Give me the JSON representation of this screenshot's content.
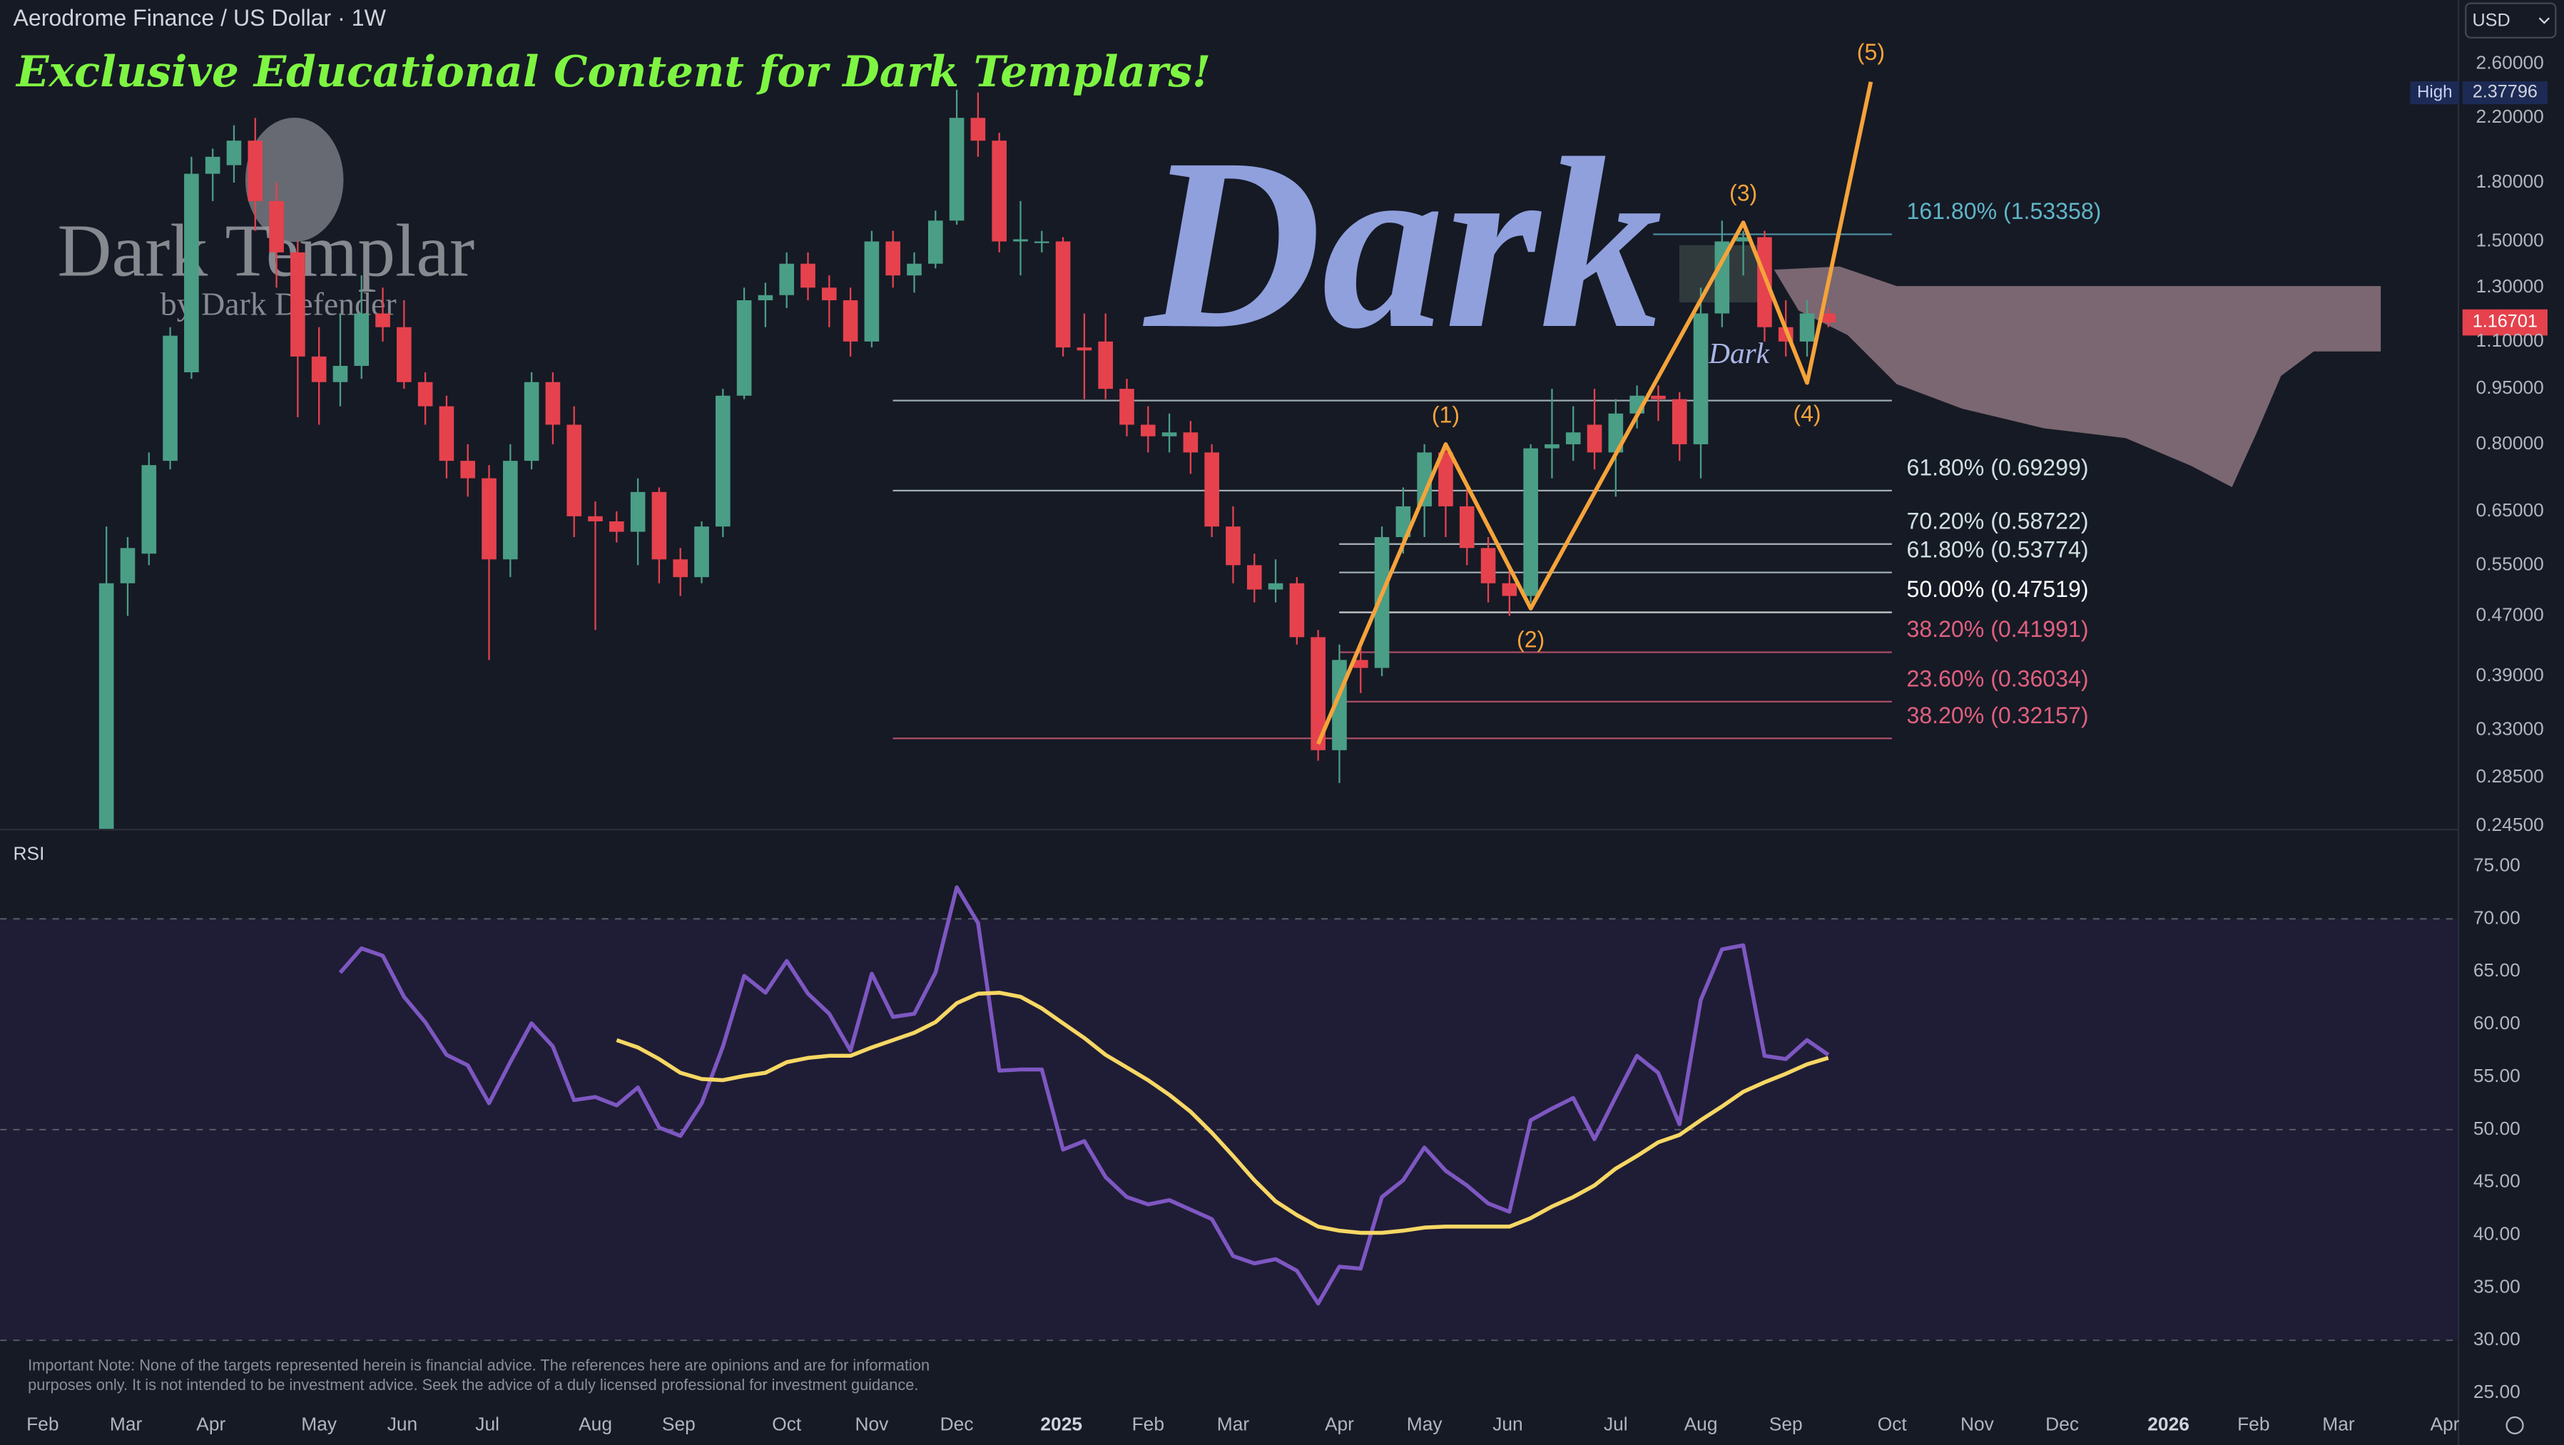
{
  "chart_data": [
    {
      "type": "candlestick",
      "title": "Aerodrome Finance / US Dollar · 1W",
      "log_scale": true,
      "up_color": "#4a9e86",
      "down_color": "#e5424d",
      "xlim": [
        -5,
        110.6
      ],
      "xticks": [
        {
          "value": -3,
          "label": "Feb"
        },
        {
          "value": 0.92,
          "label": "Mar"
        },
        {
          "value": 4.92,
          "label": "Apr"
        },
        {
          "value": 10,
          "label": "May"
        },
        {
          "value": 13.92,
          "label": "Jun"
        },
        {
          "value": 17.92,
          "label": "Jul"
        },
        {
          "value": 23,
          "label": "Aug"
        },
        {
          "value": 26.92,
          "label": "Sep"
        },
        {
          "value": 32,
          "label": "Oct"
        },
        {
          "value": 36,
          "label": "Nov"
        },
        {
          "value": 40,
          "label": "Dec"
        },
        {
          "value": 44.92,
          "label": "2025"
        },
        {
          "value": 49,
          "label": "Feb"
        },
        {
          "value": 53,
          "label": "Mar"
        },
        {
          "value": 58,
          "label": "Apr"
        },
        {
          "value": 62,
          "label": "May"
        },
        {
          "value": 65.92,
          "label": "Jun"
        },
        {
          "value": 71,
          "label": "Jul"
        },
        {
          "value": 75,
          "label": "Aug"
        },
        {
          "value": 79,
          "label": "Sep"
        },
        {
          "value": 84,
          "label": "Oct"
        },
        {
          "value": 88,
          "label": "Nov"
        },
        {
          "value": 92,
          "label": "Dec"
        },
        {
          "value": 97,
          "label": "2026"
        },
        {
          "value": 101,
          "label": "Feb"
        },
        {
          "value": 105,
          "label": "Mar"
        },
        {
          "value": 110,
          "label": "Apr"
        }
      ],
      "ylim": [
        0.243,
        3.17
      ],
      "yticks": [
        {
          "value": 2.6,
          "label": "2.60000"
        },
        {
          "value": 2.2,
          "label": "2.20000"
        },
        {
          "value": 1.8,
          "label": "1.80000"
        },
        {
          "value": 1.5,
          "label": "1.50000"
        },
        {
          "value": 1.3,
          "label": "1.30000"
        },
        {
          "value": 1.1,
          "label": "1.10000"
        },
        {
          "value": 0.95,
          "label": "0.95000"
        },
        {
          "value": 0.8,
          "label": "0.80000"
        },
        {
          "value": 0.65,
          "label": "0.65000"
        },
        {
          "value": 0.55,
          "label": "0.55000"
        },
        {
          "value": 0.47,
          "label": "0.47000"
        },
        {
          "value": 0.39,
          "label": "0.39000"
        },
        {
          "value": 0.33,
          "label": "0.33000"
        },
        {
          "value": 0.285,
          "label": "0.28500"
        },
        {
          "value": 0.245,
          "label": "0.24500"
        }
      ],
      "open": [
        0.24,
        0.52,
        0.57,
        0.76,
        1.0,
        1.85,
        1.9,
        2.05,
        1.7,
        1.45,
        1.05,
        0.97,
        1.02,
        1.2,
        1.15,
        0.97,
        0.9,
        0.76,
        0.72,
        0.56,
        0.76,
        0.97,
        0.85,
        0.64,
        0.63,
        0.61,
        0.69,
        0.56,
        0.53,
        0.62,
        0.93,
        1.25,
        1.27,
        1.4,
        1.3,
        1.25,
        1.1,
        1.5,
        1.35,
        1.4,
        1.6,
        2.2,
        2.05,
        1.5,
        1.5,
        1.5,
        1.08,
        1.1,
        0.95,
        0.85,
        0.82,
        0.83,
        0.78,
        0.62,
        0.55,
        0.51,
        0.52,
        0.44,
        0.31,
        0.41,
        0.4,
        0.6,
        0.66,
        0.78,
        0.66,
        0.58,
        0.52,
        0.5,
        0.79,
        0.8,
        0.85,
        0.78,
        0.88,
        0.93,
        0.92,
        0.8,
        1.2,
        1.5,
        1.52,
        1.15,
        1.1,
        1.2
      ],
      "high": [
        0.62,
        0.6,
        0.78,
        1.15,
        1.95,
        2.0,
        2.15,
        2.2,
        1.8,
        1.5,
        1.15,
        1.2,
        1.35,
        1.3,
        1.25,
        1.0,
        0.93,
        0.8,
        0.75,
        0.8,
        1.0,
        1.0,
        0.9,
        0.67,
        0.65,
        0.72,
        0.7,
        0.58,
        0.63,
        0.95,
        1.3,
        1.32,
        1.45,
        1.45,
        1.35,
        1.3,
        1.55,
        1.55,
        1.45,
        1.65,
        2.4,
        2.38,
        2.1,
        1.7,
        1.55,
        1.52,
        1.2,
        1.2,
        0.98,
        0.9,
        0.88,
        0.86,
        0.8,
        0.66,
        0.57,
        0.56,
        0.53,
        0.45,
        0.43,
        0.43,
        0.62,
        0.7,
        0.8,
        0.8,
        0.7,
        0.6,
        0.54,
        0.8,
        0.95,
        0.9,
        0.95,
        0.92,
        0.96,
        0.96,
        0.94,
        1.3,
        1.6,
        1.55,
        1.55,
        1.25,
        1.25,
        1.22
      ],
      "low": [
        0.22,
        0.47,
        0.55,
        0.74,
        0.98,
        1.7,
        1.8,
        1.55,
        1.3,
        0.87,
        0.85,
        0.9,
        0.98,
        1.1,
        0.95,
        0.85,
        0.72,
        0.68,
        0.41,
        0.53,
        0.74,
        0.8,
        0.6,
        0.45,
        0.59,
        0.55,
        0.52,
        0.5,
        0.52,
        0.6,
        0.92,
        1.15,
        1.22,
        1.25,
        1.15,
        1.05,
        1.08,
        1.3,
        1.28,
        1.38,
        1.58,
        1.95,
        1.45,
        1.35,
        1.45,
        1.05,
        0.92,
        0.92,
        0.82,
        0.78,
        0.78,
        0.73,
        0.6,
        0.52,
        0.49,
        0.49,
        0.43,
        0.3,
        0.28,
        0.37,
        0.39,
        0.57,
        0.6,
        0.6,
        0.55,
        0.49,
        0.47,
        0.49,
        0.72,
        0.76,
        0.74,
        0.68,
        0.84,
        0.86,
        0.76,
        0.72,
        1.15,
        1.35,
        1.1,
        1.05,
        1.05,
        1.15
      ],
      "close": [
        0.52,
        0.58,
        0.75,
        1.12,
        1.85,
        1.95,
        2.05,
        1.7,
        1.45,
        1.05,
        0.97,
        1.02,
        1.2,
        1.15,
        0.97,
        0.9,
        0.76,
        0.72,
        0.56,
        0.76,
        0.97,
        0.85,
        0.64,
        0.63,
        0.61,
        0.69,
        0.56,
        0.53,
        0.62,
        0.93,
        1.25,
        1.27,
        1.4,
        1.3,
        1.25,
        1.1,
        1.5,
        1.35,
        1.4,
        1.6,
        2.2,
        2.05,
        1.5,
        1.51,
        1.5,
        1.08,
        1.07,
        0.95,
        0.85,
        0.82,
        0.83,
        0.78,
        0.62,
        0.55,
        0.51,
        0.52,
        0.44,
        0.31,
        0.41,
        0.4,
        0.6,
        0.66,
        0.78,
        0.66,
        0.58,
        0.52,
        0.5,
        0.79,
        0.8,
        0.83,
        0.78,
        0.88,
        0.93,
        0.92,
        0.8,
        1.2,
        1.5,
        1.52,
        1.15,
        1.1,
        1.2,
        1.16701
      ],
      "fib_levels": [
        {
          "value": 1.53358,
          "label": "161.80% (1.53358)",
          "color": "#5fb5c8"
        },
        {
          "value": 0.916,
          "color": "#c8dcdc"
        },
        {
          "value": 0.69299,
          "label": "61.80% (0.69299)",
          "color": "#d0e0e0"
        },
        {
          "value": 0.58722,
          "label": "70.20% (0.58722)",
          "color": "#d0e0e0"
        },
        {
          "value": 0.53774,
          "label": "61.80% (0.53774)",
          "color": "#d0e0e0"
        },
        {
          "value": 0.47519,
          "label": "50.00% (0.47519)",
          "color": "#ffffff"
        },
        {
          "value": 0.41991,
          "label": "38.20% (0.41991)",
          "color": "#e0607e"
        },
        {
          "value": 0.36034,
          "label": "23.60% (0.36034)",
          "color": "#e0607e"
        },
        {
          "value": 0.32157,
          "label": "38.20% (0.32157)",
          "color": "#e0607e"
        }
      ],
      "wave": {
        "color": "#f5a33a",
        "x": [
          57,
          63,
          67,
          77,
          80,
          83
        ],
        "y": [
          0.316,
          0.8,
          0.481,
          1.59,
          0.968,
          2.46
        ],
        "labels": [
          null,
          "(1)",
          "(2)",
          "(3)",
          "(4)",
          "(5)"
        ]
      },
      "high_label": "High",
      "high_value": 2.37796,
      "last_price": 1.16701
    },
    {
      "type": "line",
      "title": "RSI",
      "ylim": [
        24.1,
        78.4
      ],
      "yticks": [
        {
          "value": 75,
          "label": "75.00"
        },
        {
          "value": 70,
          "label": "70.00"
        },
        {
          "value": 65,
          "label": "65.00"
        },
        {
          "value": 60,
          "label": "60.00"
        },
        {
          "value": 55,
          "label": "55.00"
        },
        {
          "value": 50,
          "label": "50.00"
        },
        {
          "value": 45,
          "label": "45.00"
        },
        {
          "value": 40,
          "label": "40.00"
        },
        {
          "value": 35,
          "label": "35.00"
        },
        {
          "value": 30,
          "label": "30.00"
        },
        {
          "value": 25,
          "label": "25.00"
        }
      ],
      "band": [
        30,
        70
      ],
      "hlines": [
        70,
        50,
        30
      ],
      "series": [
        {
          "color": "#7e57c2",
          "values": [
            null,
            null,
            null,
            null,
            null,
            null,
            null,
            null,
            null,
            null,
            null,
            64.9,
            67.2,
            66.5,
            62.6,
            60.2,
            57.1,
            56.1,
            52.5,
            56.4,
            60.1,
            57.9,
            52.8,
            53.1,
            52.3,
            54.0,
            50.2,
            49.4,
            52.5,
            57.9,
            64.6,
            63.0,
            66.0,
            62.9,
            61.0,
            57.5,
            64.8,
            60.7,
            61.0,
            64.9,
            73.0,
            69.6,
            55.6,
            55.7,
            55.7,
            48.1,
            48.9,
            45.5,
            43.6,
            42.9,
            43.3,
            42.4,
            41.5,
            38.0,
            37.3,
            37.7,
            36.6,
            33.5,
            37.0,
            36.8,
            43.6,
            45.2,
            48.3,
            46.1,
            44.7,
            43.0,
            42.2,
            50.9,
            52.0,
            53.0,
            49.1,
            53.1,
            57.0,
            55.4,
            50.5,
            62.3,
            67.1,
            67.5,
            57.0,
            56.7,
            58.5,
            57.1
          ]
        },
        {
          "color": "#f7d764",
          "values": [
            null,
            null,
            null,
            null,
            null,
            null,
            null,
            null,
            null,
            null,
            null,
            null,
            null,
            null,
            null,
            null,
            null,
            null,
            null,
            null,
            null,
            null,
            null,
            null,
            58.5,
            57.8,
            56.7,
            55.4,
            54.8,
            54.7,
            55.1,
            55.4,
            56.4,
            56.8,
            57.0,
            57.0,
            57.8,
            58.5,
            59.2,
            60.2,
            62.0,
            62.9,
            63.0,
            62.6,
            61.5,
            60.1,
            58.7,
            57.1,
            55.9,
            54.7,
            53.3,
            51.7,
            49.7,
            47.5,
            45.2,
            43.2,
            41.9,
            40.8,
            40.4,
            40.2,
            40.2,
            40.4,
            40.7,
            40.8,
            40.8,
            40.8,
            40.8,
            41.6,
            42.7,
            43.6,
            44.7,
            46.3,
            47.5,
            48.8,
            49.5,
            50.9,
            52.2,
            53.6,
            54.5,
            55.3,
            56.2,
            56.8
          ]
        }
      ]
    }
  ],
  "header": {
    "currency": "USD"
  },
  "overlay": {
    "banner": "Exclusive Educational Content for Dark Templars!",
    "brand": "Dark Templar",
    "byline": "by Dark Defender",
    "watermark": "Dark",
    "watermark_small": "Dark"
  },
  "footer": {
    "note": [
      "Important Note: None of the targets represented herein is financial advice. The references here are opinions and are for information",
      "purposes only. It is not intended to be investment advice. Seek the advice of a duly licensed professional for investment guidance."
    ]
  }
}
